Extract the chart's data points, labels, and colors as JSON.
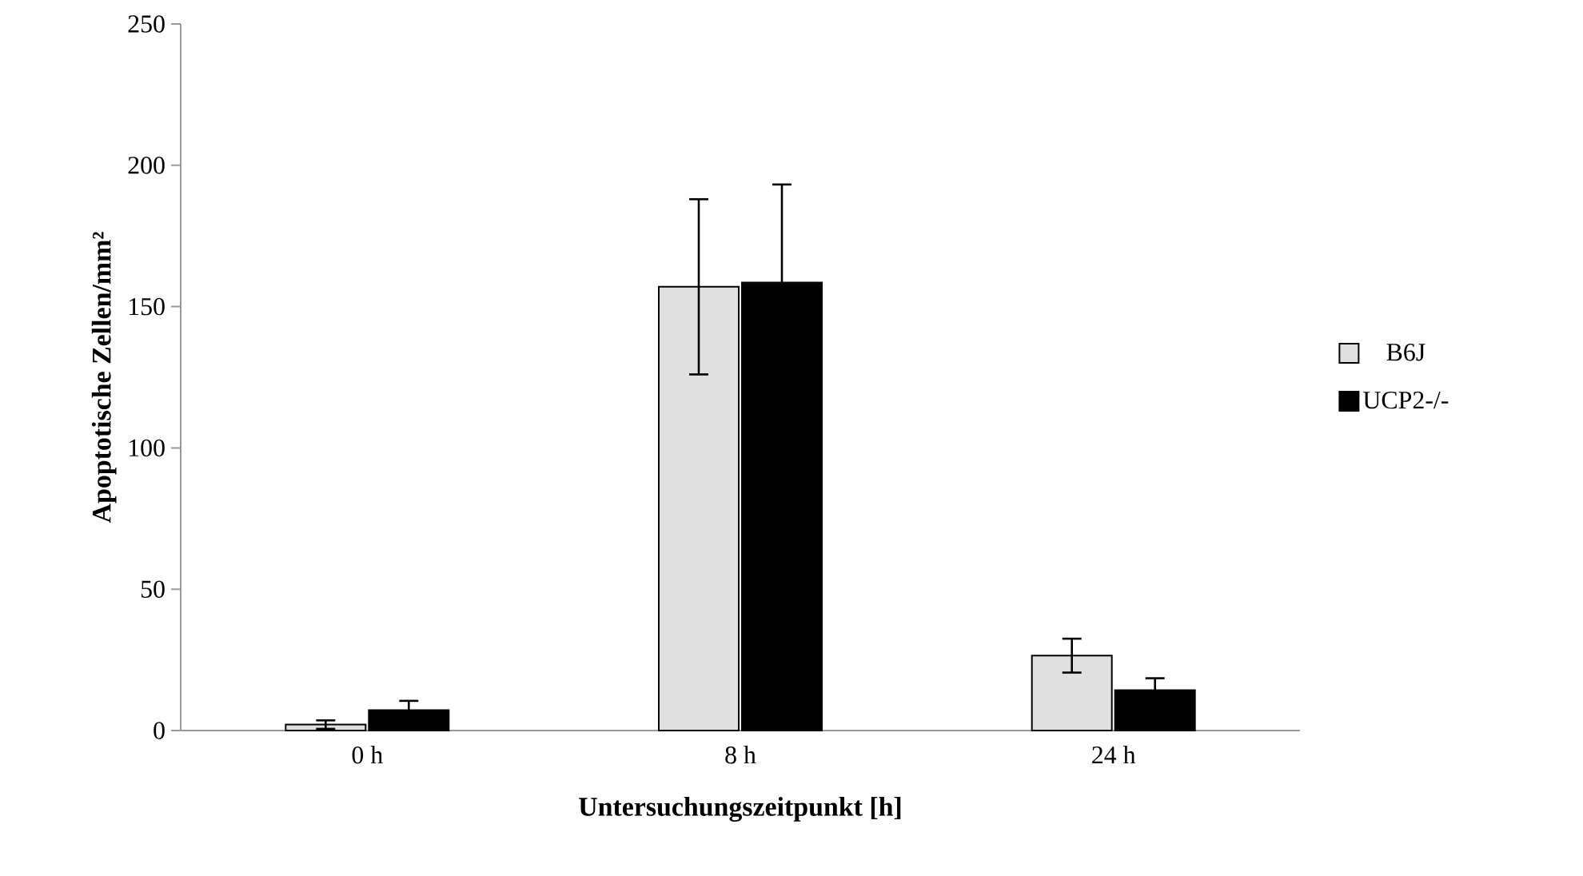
{
  "chart_data": {
    "type": "bar",
    "xlabel": "Untersuchungszeitpunkt [h]",
    "ylabel": "Apoptotische Zellen/mm²",
    "categories": [
      "0 h",
      "8 h",
      "24 h"
    ],
    "series": [
      {
        "name": "B6J",
        "color": "#e0e0e0",
        "values": [
          2.1,
          157,
          26.5
        ],
        "errors": [
          1.5,
          31,
          6
        ]
      },
      {
        "name": "UCP2-/-",
        "color": "#000000",
        "values": [
          7.2,
          158.5,
          14.3
        ],
        "errors": [
          3.3,
          34.7,
          4.2
        ]
      }
    ],
    "ylim": [
      0,
      250
    ],
    "yticks": [
      0,
      50,
      100,
      150,
      200,
      250
    ],
    "legend": "right",
    "grid": false
  }
}
